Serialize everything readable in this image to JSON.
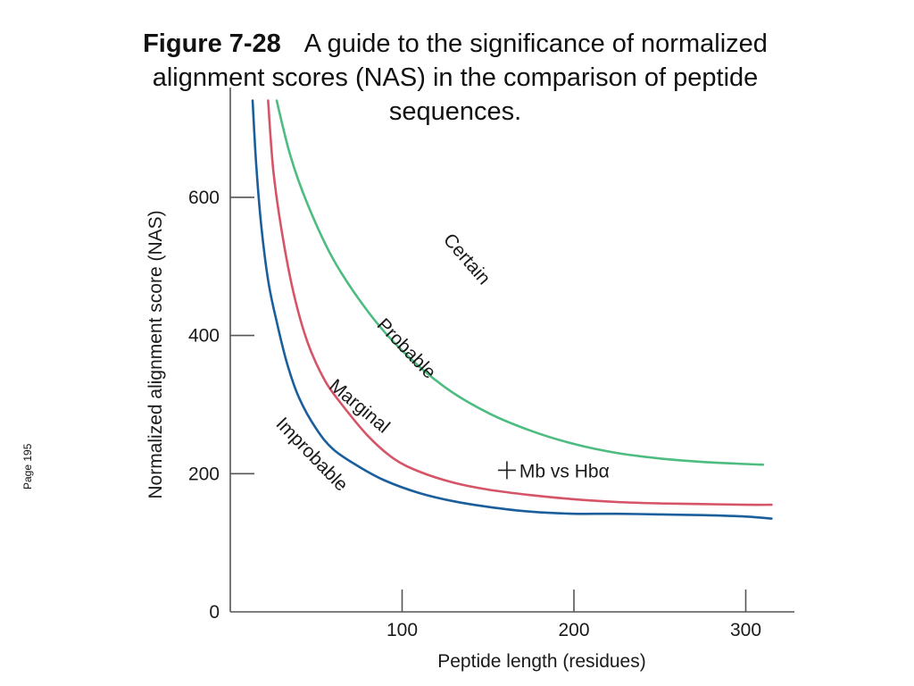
{
  "caption": {
    "figure": "Figure 7-28",
    "text": "A guide to the significance of normalized alignment scores (NAS) in the comparison of peptide sequences."
  },
  "page_note": "Page 195",
  "chart_data": {
    "type": "line",
    "title": "",
    "xlabel": "Peptide length (residues)",
    "ylabel": "Normalized alignment score (NAS)",
    "xlim": [
      0,
      325
    ],
    "ylim": [
      0,
      740
    ],
    "xticks": [
      100,
      200,
      300
    ],
    "xtick_labels": [
      "100",
      "200",
      "300"
    ],
    "yticks": [
      0,
      200,
      400,
      600
    ],
    "ytick_labels": [
      "0",
      "200",
      "400",
      "600"
    ],
    "grid": false,
    "legend": "none",
    "series": [
      {
        "color": "#1a5f9c",
        "x": [
          13,
          15,
          18,
          22,
          27,
          33,
          40,
          50,
          60,
          75,
          90,
          110,
          130,
          150,
          175,
          200,
          225,
          250,
          275,
          300,
          315
        ],
        "y": [
          740,
          650,
          560,
          480,
          420,
          360,
          310,
          265,
          235,
          210,
          190,
          172,
          160,
          152,
          145,
          142,
          142,
          141,
          140,
          138,
          135
        ]
      },
      {
        "color": "#d65467",
        "x": [
          22,
          25,
          30,
          37,
          45,
          55,
          65,
          80,
          95,
          110,
          130,
          150,
          175,
          200,
          225,
          250,
          275,
          300,
          315
        ],
        "y": [
          740,
          640,
          550,
          460,
          390,
          335,
          300,
          255,
          222,
          203,
          187,
          177,
          169,
          163,
          159,
          157,
          156,
          155,
          155
        ]
      },
      {
        "color": "#4dbc80",
        "x": [
          27,
          35,
          45,
          60,
          80,
          100,
          125,
          150,
          175,
          200,
          225,
          250,
          275,
          300,
          310
        ],
        "y": [
          740,
          660,
          590,
          510,
          435,
          378,
          325,
          288,
          262,
          243,
          230,
          222,
          217,
          214,
          213
        ]
      }
    ],
    "annotations": [
      {
        "text": "Certain",
        "x": 135,
        "y": 505,
        "angle": 49
      },
      {
        "text": "Probable",
        "x": 100,
        "y": 375,
        "angle": 46
      },
      {
        "text": "Marginal",
        "x": 73,
        "y": 291,
        "angle": 40
      },
      {
        "text": "Improbable",
        "x": 45,
        "y": 222,
        "angle": 46
      }
    ],
    "points": [
      {
        "label": "Mb vs Hbα",
        "x": 161,
        "y": 205,
        "marker": "+"
      }
    ]
  }
}
